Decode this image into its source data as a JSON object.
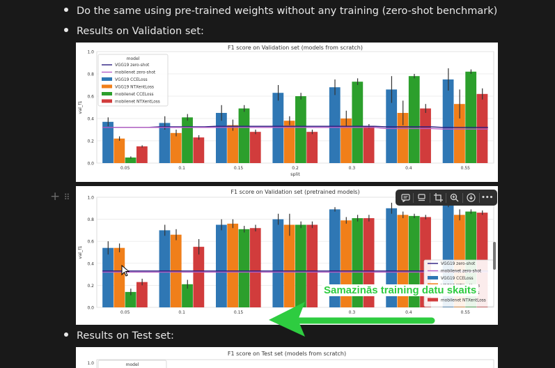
{
  "bullets": {
    "zero_shot": "Do the same using pre-trained weights without any training (zero-shot benchmark)",
    "validation": "Results on Validation set:",
    "test": "Results on Test set:"
  },
  "colors": {
    "vgg_cce": "#2f77b4",
    "vgg_ntx": "#f07f1a",
    "mob_cce": "#2c9f2c",
    "mob_ntx": "#d13c3c",
    "vgg_zero": "#2a1b80",
    "mob_zero": "#b55fc4",
    "annotation": "#2ecc40"
  },
  "chart_data": [
    {
      "type": "bar",
      "title": "F1 score on Validation set (models from scratch)",
      "xlabel": "split",
      "ylabel": "val_f1",
      "ylim": [
        0,
        1.0
      ],
      "yticks": [
        "0.0",
        "0.2",
        "0.4",
        "0.6",
        "0.8",
        "1.0"
      ],
      "categories": [
        "0.05",
        "0.1",
        "0.15",
        "0.2",
        "0.3",
        "0.4",
        "0.55"
      ],
      "legend_title": "model",
      "legend_position": "top-left",
      "series": [
        {
          "name": "VGG19 CCELoss",
          "color": "#2f77b4",
          "values": [
            0.37,
            0.36,
            0.45,
            0.63,
            0.68,
            0.66,
            0.75
          ],
          "err": [
            0.04,
            0.06,
            0.07,
            0.07,
            0.07,
            0.12,
            0.1
          ]
        },
        {
          "name": "VGG19 NTXentLoss",
          "color": "#f07f1a",
          "values": [
            0.22,
            0.27,
            0.34,
            0.38,
            0.4,
            0.45,
            0.53
          ],
          "err": [
            0.02,
            0.03,
            0.05,
            0.04,
            0.07,
            0.11,
            0.13
          ]
        },
        {
          "name": "mobilenet CCELoss",
          "color": "#2c9f2c",
          "values": [
            0.05,
            0.41,
            0.49,
            0.6,
            0.73,
            0.78,
            0.82
          ],
          "err": [
            0.01,
            0.03,
            0.03,
            0.03,
            0.03,
            0.02,
            0.02
          ]
        },
        {
          "name": "mobilenet NTXentLoss",
          "color": "#d13c3c",
          "values": [
            0.15,
            0.23,
            0.28,
            0.28,
            0.33,
            0.49,
            0.62
          ],
          "err": [
            0.01,
            0.02,
            0.02,
            0.02,
            0.02,
            0.04,
            0.05
          ]
        }
      ],
      "lines": [
        {
          "name": "VGG19 zero-shot",
          "color": "#2a1b80",
          "values": [
            0.32,
            0.325,
            0.33,
            0.33,
            0.33,
            0.325,
            0.32
          ]
        },
        {
          "name": "mobilenet zero-shot",
          "color": "#b55fc4",
          "values": [
            0.32,
            0.32,
            0.32,
            0.32,
            0.32,
            0.31,
            0.305
          ]
        }
      ]
    },
    {
      "type": "bar",
      "title": "F1 score on Validation set (pretrained models)",
      "xlabel": "",
      "ylabel": "val_f1",
      "ylim": [
        0,
        1.0
      ],
      "yticks": [
        "0.0",
        "0.2",
        "0.4",
        "0.6",
        "0.8",
        "1.0"
      ],
      "categories": [
        "0.05",
        "0.1",
        "0.15",
        "0.2",
        "0.3",
        "0.4",
        "0.55"
      ],
      "legend_position": "bottom-right",
      "series": [
        {
          "name": "VGG19 CCELoss",
          "color": "#2f77b4",
          "values": [
            0.54,
            0.7,
            0.75,
            0.8,
            0.89,
            0.9,
            0.94
          ],
          "err": [
            0.06,
            0.05,
            0.05,
            0.05,
            0.02,
            0.05,
            0.03
          ]
        },
        {
          "name": "VGG19 NTXentLoss",
          "color": "#f07f1a",
          "values": [
            0.54,
            0.66,
            0.76,
            0.75,
            0.79,
            0.84,
            0.84
          ],
          "err": [
            0.04,
            0.05,
            0.04,
            0.1,
            0.03,
            0.03,
            0.05
          ]
        },
        {
          "name": "mobilenet CCELoss",
          "color": "#2c9f2c",
          "values": [
            0.14,
            0.21,
            0.71,
            0.75,
            0.81,
            0.83,
            0.87
          ],
          "err": [
            0.03,
            0.04,
            0.03,
            0.03,
            0.03,
            0.02,
            0.02
          ]
        },
        {
          "name": "mobilenet NTXentLoss",
          "color": "#d13c3c",
          "values": [
            0.23,
            0.55,
            0.72,
            0.75,
            0.81,
            0.82,
            0.86
          ],
          "err": [
            0.03,
            0.07,
            0.03,
            0.03,
            0.03,
            0.02,
            0.02
          ]
        }
      ],
      "lines": [
        {
          "name": "VGG19 zero-shot",
          "color": "#2a1b80",
          "values": [
            0.33,
            0.33,
            0.33,
            0.33,
            0.33,
            0.33,
            0.33
          ]
        },
        {
          "name": "mobilenet zero-shot",
          "color": "#b55fc4",
          "values": [
            0.32,
            0.32,
            0.32,
            0.32,
            0.32,
            0.32,
            0.32
          ]
        }
      ]
    },
    {
      "type": "bar",
      "title": "F1 score on Test set (models from scratch)",
      "ylim": [
        0,
        1.0
      ],
      "yticks": [
        "1.0"
      ],
      "legend_title": "model"
    }
  ],
  "annotation": {
    "text": "Samazinās  training datu skaits"
  },
  "toolbar": {
    "icons": [
      "comment-icon",
      "caption-icon",
      "crop-icon",
      "zoom-icon",
      "download-icon",
      "more-icon"
    ],
    "more_label": "•••"
  }
}
